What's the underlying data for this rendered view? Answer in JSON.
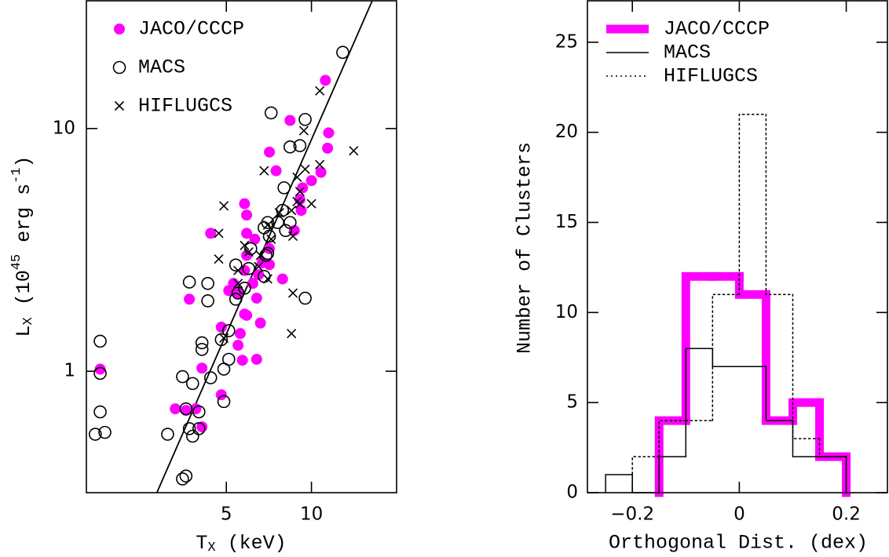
{
  "chart_data": [
    {
      "type": "scatter",
      "xlabel": [
        "T",
        "X",
        " (keV)"
      ],
      "ylabel": [
        "L",
        "X",
        " (10",
        "45",
        " erg s",
        "-1",
        ")"
      ],
      "xscale": "log",
      "yscale": "log",
      "xlim": [
        1.6,
        20
      ],
      "ylim": [
        0.316,
        33.6
      ],
      "xticks": [
        5,
        10
      ],
      "yticks": [
        1,
        10
      ],
      "legend": "upper left",
      "series": [
        {
          "name": "JACO/CCCP",
          "color": "#ff00ff",
          "marker": "filled-circle",
          "x": [
            11.2,
            11.5,
            11.4,
            10.8,
            10.0,
            9.3,
            9.1,
            9.2,
            8.4,
            7.1,
            7.5,
            5.8,
            5.9,
            5.9,
            6.3,
            5.9,
            4.4,
            7.1,
            7.1,
            6.7,
            6.5,
            6.2,
            5.8,
            5.3,
            5.1,
            5.5,
            6.4,
            7.9,
            8.7,
            3.7,
            4.8,
            5.8,
            5.9,
            5.6,
            5.5,
            5.7,
            6.4,
            6.6,
            4.1,
            4.8,
            3.6,
            4.1,
            3.3,
            3.9,
            1.79
          ],
          "y": [
            15.8,
            9.6,
            8.3,
            6.6,
            6.1,
            5.7,
            5.1,
            4.6,
            10.8,
            8.0,
            6.7,
            4.9,
            4.4,
            3.7,
            3.5,
            3.0,
            3.7,
            3.2,
            2.75,
            2.8,
            2.5,
            2.3,
            2.6,
            2.3,
            2.15,
            2.1,
            2.0,
            2.4,
            3.8,
            1.98,
            1.52,
            1.72,
            1.7,
            1.43,
            1.28,
            1.11,
            1.12,
            1.58,
            1.03,
            0.8,
            0.69,
            0.59,
            0.7,
            0.7,
            1.02
          ]
        },
        {
          "name": "MACS",
          "color": "#000000",
          "marker": "open-circle",
          "x": [
            12.9,
            9.5,
            7.2,
            9.1,
            8.4,
            8.0,
            7.9,
            7.6,
            7.0,
            6.8,
            7.1,
            6.1,
            6.9,
            6.8,
            7.0,
            5.4,
            6.0,
            5.5,
            5.8,
            5.4,
            8.4,
            8.1,
            9.5,
            3.7,
            4.3,
            4.3,
            5.1,
            4.8,
            4.1,
            4.1,
            1.79,
            1.79,
            1.79,
            3.1,
            3.5,
            3.8,
            4.4,
            5.1,
            4.9,
            4.9,
            3.6,
            4.0,
            4.0,
            3.7,
            3.8,
            1.72,
            1.86,
            3.6,
            3.5
          ],
          "y": [
            20.6,
            10.9,
            11.6,
            8.5,
            8.4,
            5.7,
            4.6,
            4.1,
            4.1,
            3.9,
            3.6,
            3.2,
            3.0,
            2.46,
            3.06,
            2.74,
            2.65,
            2.1,
            2.2,
            1.98,
            4.1,
            3.8,
            2.0,
            2.33,
            2.3,
            1.95,
            1.47,
            1.35,
            1.31,
            1.23,
            1.33,
            0.98,
            0.68,
            0.55,
            0.95,
            0.89,
            0.94,
            1.12,
            1.02,
            0.75,
            0.7,
            0.68,
            0.58,
            0.58,
            0.54,
            0.55,
            0.56,
            0.37,
            0.36
          ]
        },
        {
          "name": "HIFLUGCS",
          "color": "#000000",
          "marker": "cross",
          "x": [
            10.7,
            14.1,
            9.4,
            10.7,
            9.5,
            8.9,
            6.8,
            9.1,
            10.0,
            9.1,
            8.5,
            7.7,
            7.0,
            4.9,
            4.7,
            5.8,
            6.0,
            8.6,
            7.2,
            6.6,
            4.7,
            5.5,
            6.5,
            7.0,
            8.9,
            8.6,
            8.5,
            5.5,
            4.9
          ],
          "y": [
            14.3,
            8.1,
            9.8,
            7.1,
            6.8,
            6.3,
            6.7,
            5.5,
            4.9,
            4.9,
            4.6,
            4.5,
            4.0,
            4.8,
            3.7,
            3.3,
            3.1,
            3.6,
            3.5,
            3.0,
            2.9,
            2.6,
            2.7,
            2.4,
            5.0,
            2.1,
            1.43,
            2.3,
            1.37
          ]
        }
      ],
      "fit_line": {
        "color": "#000000",
        "x": [
          2.84,
          16.4
        ],
        "y": [
          0.316,
          33.6
        ]
      }
    },
    {
      "type": "histogram",
      "xlabel": "Orthogonal Dist. (dex)",
      "ylabel": "Number of Clusters",
      "xlim": [
        -0.284,
        0.277
      ],
      "ylim": [
        0,
        27.3
      ],
      "xticks": [
        {
          "value": -0.2,
          "label": "−0.2"
        },
        0,
        0.2
      ],
      "yticks": [
        0,
        5,
        10,
        15,
        20,
        25
      ],
      "legend": "upper left",
      "series": [
        {
          "name": "JACO/CCCP",
          "color": "#ff00ff",
          "linewidth": 11,
          "linestyle": "solid",
          "bins": [
            -0.15,
            -0.1,
            -0.05,
            0,
            0.05,
            0.1,
            0.15,
            0.2
          ],
          "counts": [
            4,
            12,
            12,
            11,
            4,
            5,
            2
          ]
        },
        {
          "name": "MACS",
          "color": "#000000",
          "linewidth": 1.5,
          "linestyle": "solid",
          "bins": [
            -0.25,
            -0.2,
            -0.15,
            -0.1,
            -0.05,
            0,
            0.05,
            0.1,
            0.15,
            0.2
          ],
          "counts": [
            1,
            0,
            2,
            8,
            7,
            7,
            4,
            2,
            2
          ]
        },
        {
          "name": "HIFLUGCS",
          "color": "#000000",
          "linewidth": 1.5,
          "linestyle": "dotted",
          "bins": [
            -0.2,
            -0.15,
            -0.1,
            -0.05,
            0,
            0.05,
            0.1,
            0.15,
            0.2
          ],
          "counts": [
            2,
            4,
            4,
            11,
            21,
            11,
            3,
            2
          ]
        }
      ]
    }
  ]
}
